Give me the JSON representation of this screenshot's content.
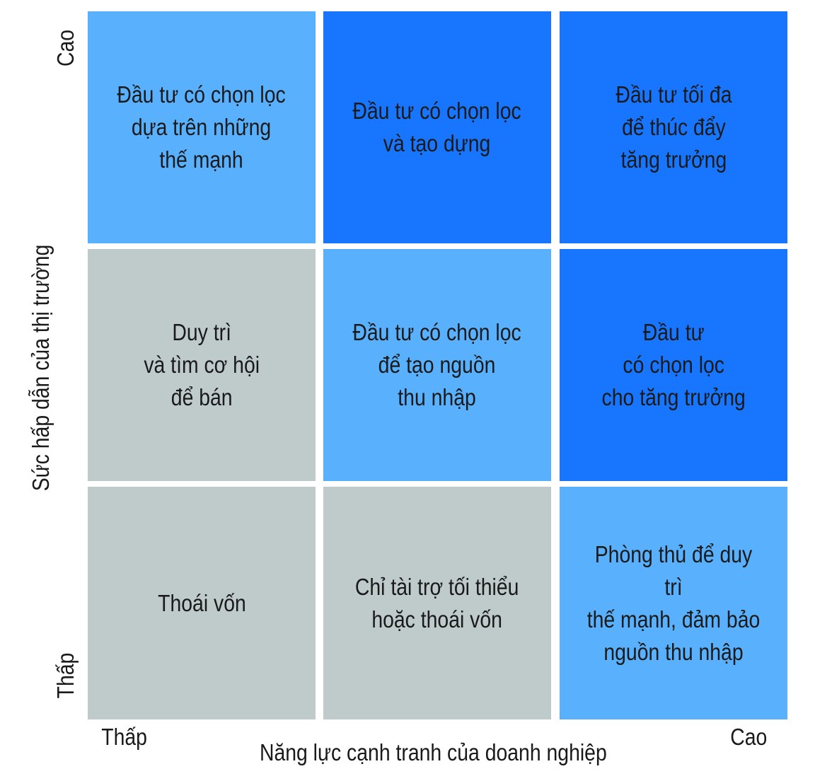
{
  "colors": {
    "light_blue": "#59b1fe",
    "dark_blue": "#1776fd",
    "gray": "#bfcbcb"
  },
  "axes": {
    "x_title": "Năng lực cạnh tranh của doanh nghiệp",
    "x_low": "Thấp",
    "x_high": "Cao",
    "y_title": "Sức hấp dẫn của thị trường",
    "y_low": "Thấp",
    "y_high": "Cao"
  },
  "cells": [
    {
      "text": "Đầu tư có chọn lọc\ndựa trên những\nthế mạnh",
      "color": "#59b1fe"
    },
    {
      "text": "Đầu tư có chọn lọc\nvà tạo dựng",
      "color": "#1776fd"
    },
    {
      "text": "Đầu tư tối đa\nđể thúc đẩy\ntăng trưởng",
      "color": "#1776fd"
    },
    {
      "text": "Duy trì\nvà tìm cơ hội\nđể bán",
      "color": "#bfcbcb"
    },
    {
      "text": "Đầu tư có chọn lọc\nđể tạo nguồn\nthu nhập",
      "color": "#59b1fe"
    },
    {
      "text": "Đầu tư\ncó chọn lọc\ncho tăng trưởng",
      "color": "#1776fd"
    },
    {
      "text": "Thoái vốn",
      "color": "#bfcbcb"
    },
    {
      "text": "Chỉ tài trợ tối thiểu\nhoặc thoái vốn",
      "color": "#bfcbcb"
    },
    {
      "text": "Phòng thủ để duy trì\nthế mạnh, đảm bảo\nnguồn thu nhập",
      "color": "#59b1fe"
    }
  ]
}
